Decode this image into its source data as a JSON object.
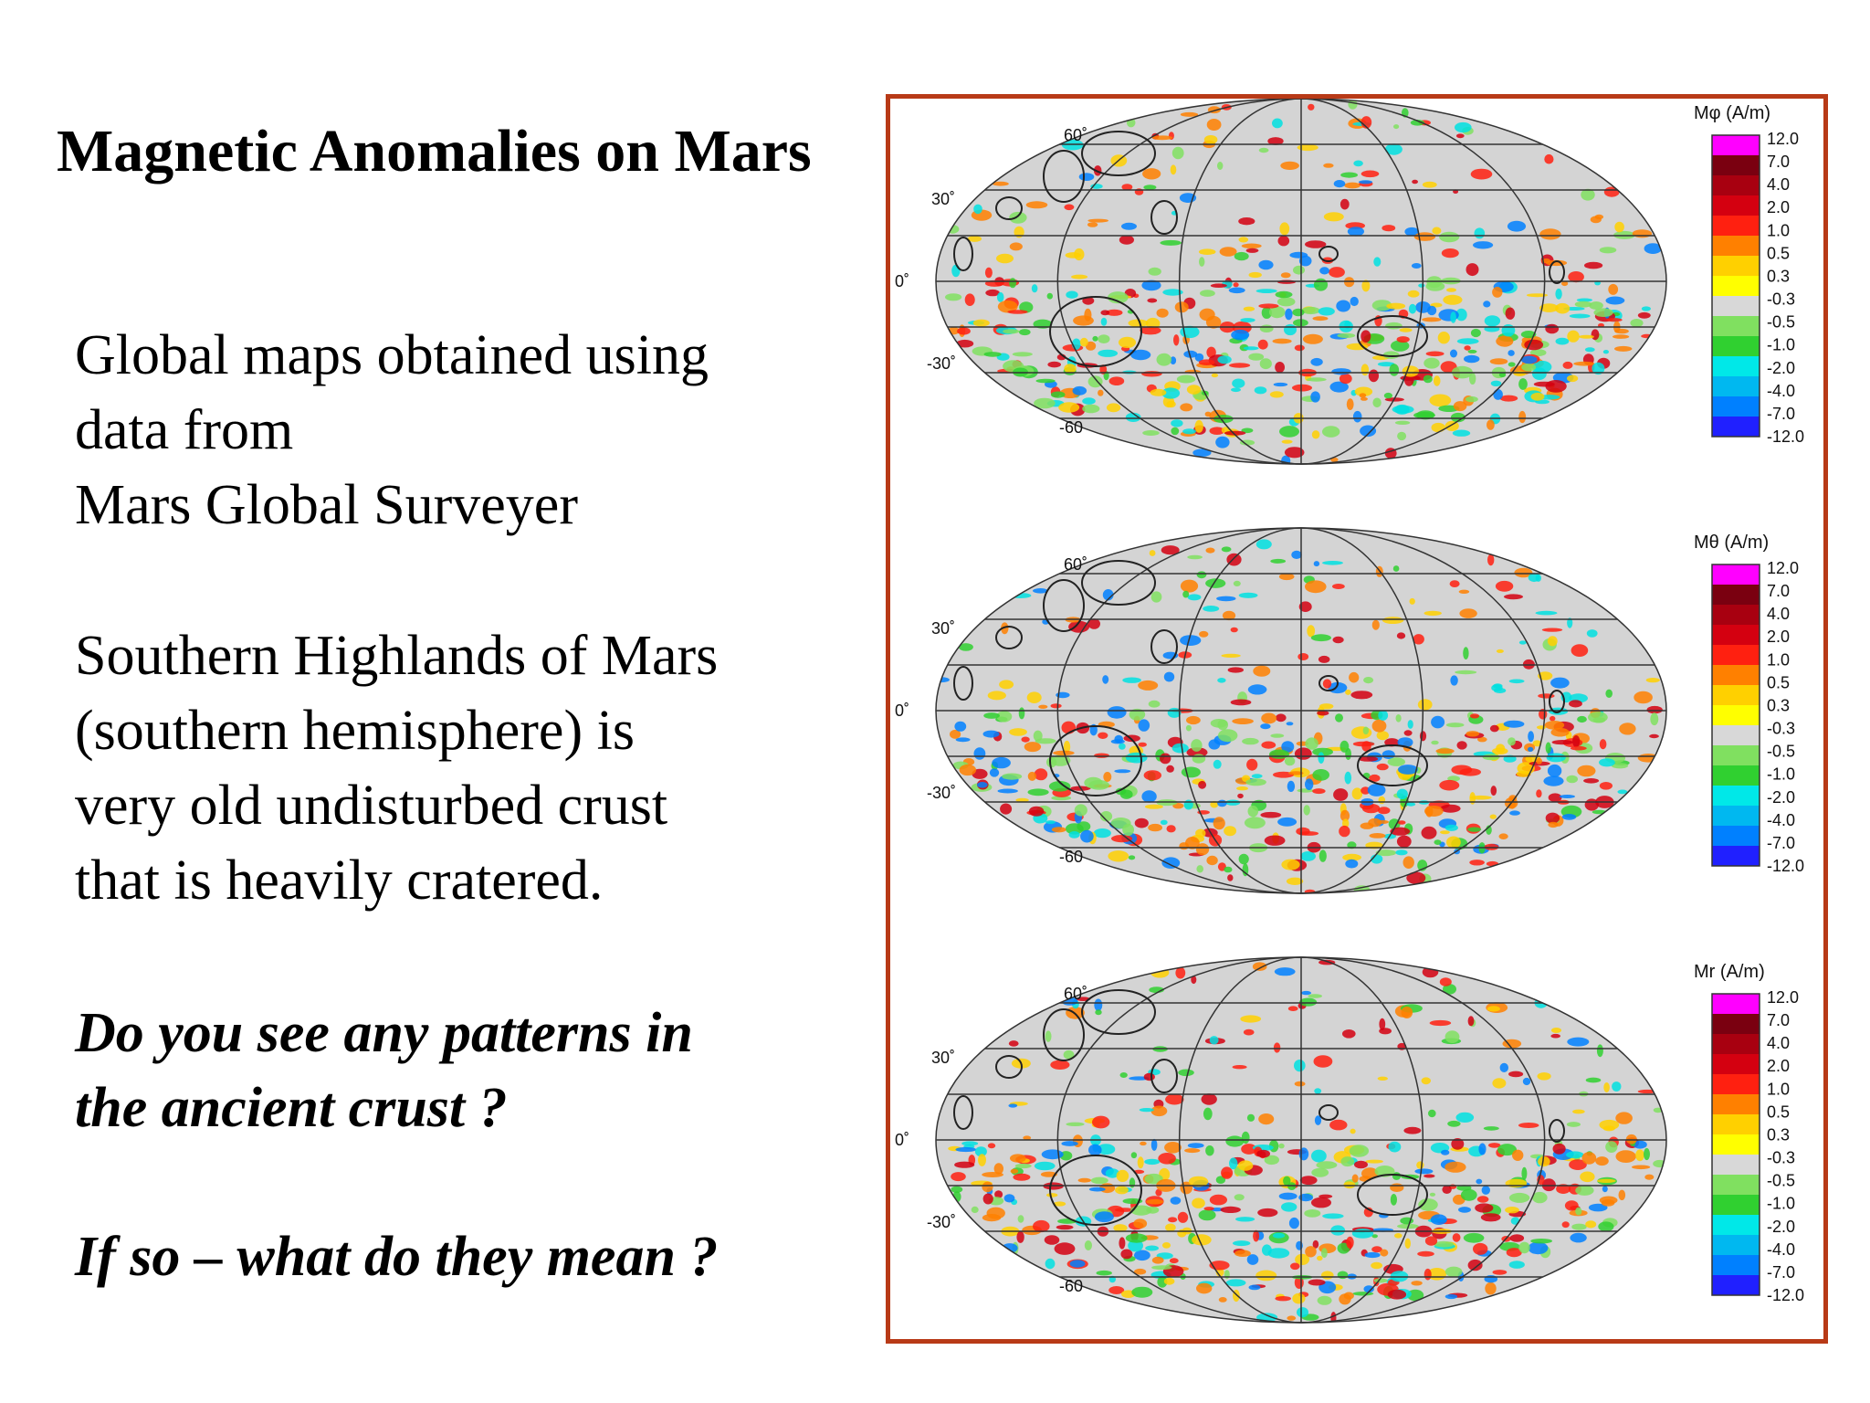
{
  "slide": {
    "title": "Magnetic Anomalies on Mars",
    "para1": [
      "Global maps obtained using",
      "data from",
      "Mars Global Surveyer"
    ],
    "para2": [
      "Southern Highlands of Mars",
      "(southern hemisphere) is",
      "very old undisturbed crust",
      "that is heavily cratered."
    ],
    "question1": [
      "Do you see any patterns in",
      "the ancient crust ?"
    ],
    "question2": "If so – what do they mean ?"
  },
  "figure": {
    "frame_color": "#b83a17",
    "latitude_labels": [
      "60˚",
      "30˚",
      "0˚",
      "-30˚",
      "-60"
    ],
    "maps": [
      {
        "colorbar_title": "Mφ (A/m)"
      },
      {
        "colorbar_title": "Mθ (A/m)"
      },
      {
        "colorbar_title": "Mr (A/m)"
      }
    ],
    "colorbar_ticks": [
      "12.0",
      "7.0",
      "4.0",
      "2.0",
      "1.0",
      "0.5",
      "0.3",
      "-0.3",
      "-0.5",
      "-1.0",
      "-2.0",
      "-4.0",
      "-7.0",
      "-12.0"
    ],
    "colorbar_colors": [
      "#ff00ff",
      "#7a0010",
      "#a80010",
      "#d40010",
      "#ff2010",
      "#ff8000",
      "#ffd000",
      "#ffff00",
      "#d8d8d8",
      "#80e060",
      "#30d030",
      "#00e8e8",
      "#00b8f0",
      "#0080ff",
      "#2020ff"
    ],
    "anomaly_colors": [
      "#ff2010",
      "#d40010",
      "#ff8000",
      "#ffd000",
      "#30d030",
      "#80e060",
      "#00e0e0",
      "#0080ff"
    ]
  }
}
